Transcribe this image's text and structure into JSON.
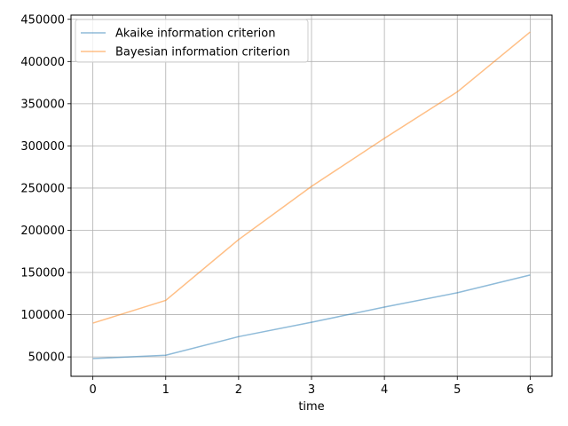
{
  "chart_data": {
    "type": "line",
    "xlabel": "time",
    "ylabel": "",
    "xlim": [
      -0.3,
      6.3
    ],
    "ylim": [
      27000,
      455000
    ],
    "x": [
      0,
      1,
      2,
      3,
      4,
      5,
      6
    ],
    "xticks": [
      0,
      1,
      2,
      3,
      4,
      5,
      6
    ],
    "yticks": [
      50000,
      100000,
      150000,
      200000,
      250000,
      300000,
      350000,
      400000,
      450000
    ],
    "grid": true,
    "legend_position": "top-left",
    "series": [
      {
        "name": "Akaike information criterion",
        "color": "#1f77b4",
        "values": [
          48000,
          52000,
          74000,
          91000,
          109000,
          126000,
          147000
        ]
      },
      {
        "name": "Bayesian information criterion",
        "color": "#ff7f0e",
        "values": [
          90000,
          117000,
          189000,
          252000,
          309000,
          364000,
          435000
        ]
      }
    ]
  }
}
